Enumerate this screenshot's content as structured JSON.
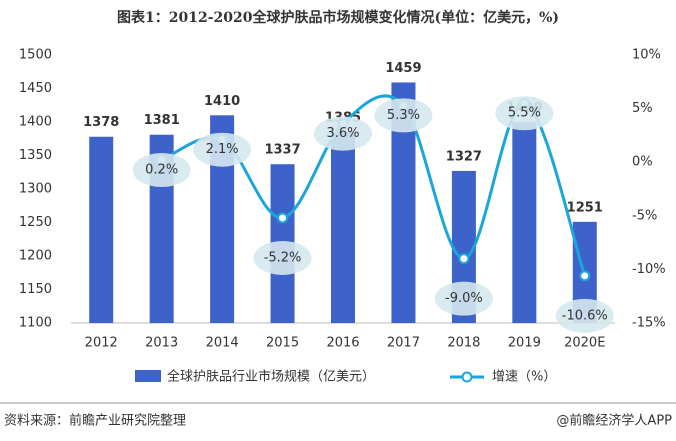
{
  "chart_data": {
    "type": "bar",
    "title": "图表1：2012-2020全球护肤品市场规模变化情况(单位：亿美元，%)",
    "categories": [
      "2012",
      "2013",
      "2014",
      "2015",
      "2016",
      "2017",
      "2018",
      "2019",
      "2020E"
    ],
    "series": [
      {
        "name": "全球护肤品行业市场规模（亿美元）",
        "type": "bar",
        "color": "#3d62c9",
        "values": [
          1378,
          1381,
          1410,
          1337,
          1385,
          1459,
          1327,
          1400,
          1251
        ]
      },
      {
        "name": "增速（%）",
        "type": "line",
        "axis": "y2",
        "color": "#1aa6dc",
        "values": [
          null,
          0.2,
          2.1,
          -5.2,
          3.6,
          5.3,
          -9.0,
          5.5,
          -10.6
        ],
        "value_labels": [
          null,
          "0.2%",
          "2.1%",
          "-5.2%",
          "3.6%",
          "5.3%",
          "-9.0%",
          "5.5%",
          "-10.6%"
        ]
      }
    ],
    "ylim": [
      1100,
      1500
    ],
    "yticks": [
      1100,
      1150,
      1200,
      1250,
      1300,
      1350,
      1400,
      1450,
      1500
    ],
    "y2lim": [
      -15,
      10
    ],
    "y2ticks": [
      {
        "value": -15,
        "label": "-15%"
      },
      {
        "value": -10,
        "label": "-10%"
      },
      {
        "value": -5,
        "label": "-5%"
      },
      {
        "value": 0,
        "label": "0%"
      },
      {
        "value": 5,
        "label": "5%"
      },
      {
        "value": 10,
        "label": "10%"
      }
    ]
  },
  "source": "资料来源：前瞻产业研究院整理",
  "brand": "@前瞻经济学人APP"
}
